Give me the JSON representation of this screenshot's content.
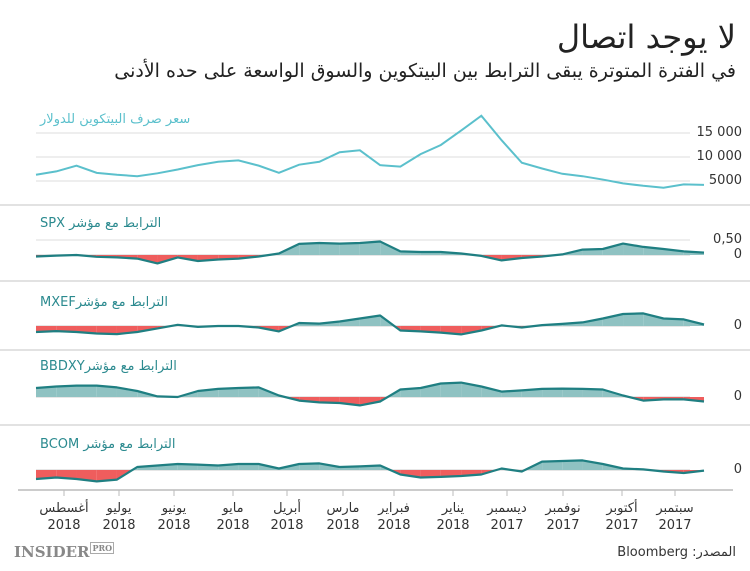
{
  "header": {
    "title": "لا يوجد اتصال",
    "subtitle": "في الفترة المتوترة يبقى الترابط بين البيتكوين والسوق الواسعة على حده الأدنى"
  },
  "footer": {
    "brand": "INSIDER",
    "brand_tag": "PRO",
    "source": "المصدر: Bloomberg"
  },
  "colors": {
    "price_line": "#5bc0cc",
    "corr_line": "#1f7f82",
    "positive_fill": "#8fc2c2",
    "negative_fill": "#ef5d5d",
    "label": "#2b8a8f",
    "grid": "#dddddd"
  },
  "chart_data": [
    {
      "type": "line",
      "title": "سعر صرف البيتكوين للدولار",
      "x_range": [
        "2018-08",
        "2017-09"
      ],
      "x_direction": "reversed (newest on left)",
      "yticks": [
        {
          "value": 15000,
          "label": "15 000"
        },
        {
          "value": 10000,
          "label": "10 000"
        },
        {
          "value": 5000,
          "label": "5000"
        }
      ],
      "grid": true,
      "values": [
        6300,
        7000,
        8200,
        6700,
        6300,
        6000,
        6600,
        7400,
        8300,
        9000,
        9300,
        8200,
        6700,
        8400,
        9000,
        11000,
        11400,
        8300,
        8000,
        10600,
        12500,
        15500,
        18600,
        13500,
        8800,
        7600,
        6500,
        6000,
        5300,
        4500,
        4000,
        3600,
        4300,
        4200
      ]
    },
    {
      "type": "area",
      "title": "الترابط مع مؤشر SPX",
      "yticks": [
        {
          "value": 0.5,
          "label": "0,50"
        },
        {
          "value": 0,
          "label": "0"
        }
      ],
      "values": [
        -0.05,
        -0.02,
        0.0,
        -0.06,
        -0.08,
        -0.12,
        -0.28,
        -0.08,
        -0.2,
        -0.15,
        -0.12,
        -0.05,
        0.05,
        0.37,
        0.4,
        0.38,
        0.4,
        0.45,
        0.12,
        0.1,
        0.1,
        0.05,
        -0.03,
        -0.18,
        -0.1,
        -0.05,
        0.02,
        0.18,
        0.2,
        0.38,
        0.27,
        0.2,
        0.12,
        0.08
      ]
    },
    {
      "type": "area",
      "title": "الترابط مع مؤشرMXEF",
      "yticks": [
        {
          "value": 0,
          "label": "0"
        }
      ],
      "values": [
        -0.2,
        -0.17,
        -0.2,
        -0.25,
        -0.27,
        -0.2,
        -0.08,
        0.04,
        -0.03,
        0.0,
        0.0,
        -0.05,
        -0.18,
        0.1,
        0.08,
        0.15,
        0.25,
        0.35,
        -0.15,
        -0.18,
        -0.22,
        -0.28,
        -0.15,
        0.02,
        -0.05,
        0.03,
        0.07,
        0.12,
        0.25,
        0.4,
        0.42,
        0.25,
        0.22,
        0.05
      ]
    },
    {
      "type": "area",
      "title": "الترابط مع مؤشرBBDXY",
      "yticks": [
        {
          "value": 0,
          "label": "0"
        }
      ],
      "values": [
        0.3,
        0.35,
        0.38,
        0.38,
        0.32,
        0.2,
        0.02,
        0.0,
        0.2,
        0.27,
        0.3,
        0.32,
        0.05,
        -0.12,
        -0.18,
        -0.2,
        -0.28,
        -0.15,
        0.25,
        0.3,
        0.45,
        0.48,
        0.35,
        0.18,
        0.22,
        0.27,
        0.28,
        0.27,
        0.25,
        0.05,
        -0.12,
        -0.08,
        -0.08,
        -0.15
      ]
    },
    {
      "type": "area",
      "title": "الترابط مع مؤشر BCOM",
      "yticks": [
        {
          "value": 0,
          "label": "0"
        }
      ],
      "values": [
        -0.3,
        -0.25,
        -0.3,
        -0.38,
        -0.32,
        0.1,
        0.15,
        0.2,
        0.18,
        0.15,
        0.2,
        0.2,
        0.05,
        0.2,
        0.22,
        0.1,
        0.12,
        0.15,
        -0.15,
        -0.25,
        -0.23,
        -0.2,
        -0.15,
        0.05,
        -0.05,
        0.28,
        0.3,
        0.32,
        0.2,
        0.05,
        0.02,
        -0.05,
        -0.1,
        -0.02
      ]
    }
  ],
  "xaxis": {
    "ticks": [
      {
        "month": "أغسطس",
        "year": "2018"
      },
      {
        "month": "يوليو",
        "year": "2018"
      },
      {
        "month": "يونيو",
        "year": "2018"
      },
      {
        "month": "مايو",
        "year": "2018"
      },
      {
        "month": "أبريل",
        "year": "2018"
      },
      {
        "month": "مارس",
        "year": "2018"
      },
      {
        "month": "فبراير",
        "year": "2018"
      },
      {
        "month": "يناير",
        "year": "2018"
      },
      {
        "month": "ديسمبر",
        "year": "2017"
      },
      {
        "month": "نوفمبر",
        "year": "2017"
      },
      {
        "month": "أكتوبر",
        "year": "2017"
      },
      {
        "month": "سبتمبر",
        "year": "2017"
      }
    ]
  }
}
